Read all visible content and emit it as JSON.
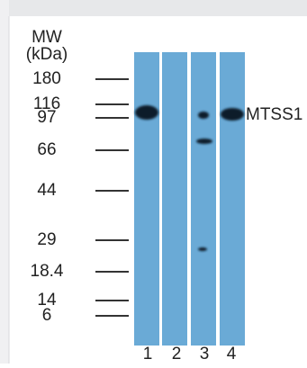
{
  "header": {
    "title": "MW",
    "unit": "(kDa)"
  },
  "markers": [
    "180",
    "116",
    "97",
    "66",
    "44",
    "29",
    "18.4",
    "14",
    "6"
  ],
  "lanes": [
    "1",
    "2",
    "3",
    "4"
  ],
  "band_label": "MTSS1"
}
